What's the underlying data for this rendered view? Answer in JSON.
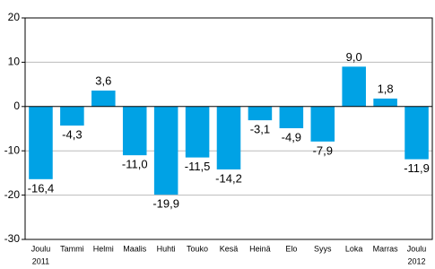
{
  "chart_data": {
    "type": "bar",
    "categories": [
      "Joulu",
      "Tammi",
      "Helmi",
      "Maalis",
      "Huhti",
      "Touko",
      "Kesä",
      "Heinä",
      "Elo",
      "Syys",
      "Loka",
      "Marras",
      "Joulu"
    ],
    "x_sublabels": [
      "2011",
      null,
      null,
      null,
      null,
      null,
      null,
      null,
      null,
      null,
      null,
      null,
      "2012"
    ],
    "values": [
      -16.4,
      -4.3,
      3.6,
      -11.0,
      -19.9,
      -11.5,
      -14.2,
      -3.1,
      -4.9,
      -7.9,
      9.0,
      1.8,
      -11.9
    ],
    "value_labels": [
      "-16,4",
      "-4,3",
      "3,6",
      "-11,0",
      "-19,9",
      "-11,5",
      "-14,2",
      "-3,1",
      "-4,9",
      "-7,9",
      "9,0",
      "1,8",
      "-11,9"
    ],
    "color": "#00a2e5",
    "ylim": [
      -30,
      20
    ],
    "yticks": [
      -30,
      -20,
      -10,
      0,
      10,
      20
    ],
    "grid": true
  }
}
